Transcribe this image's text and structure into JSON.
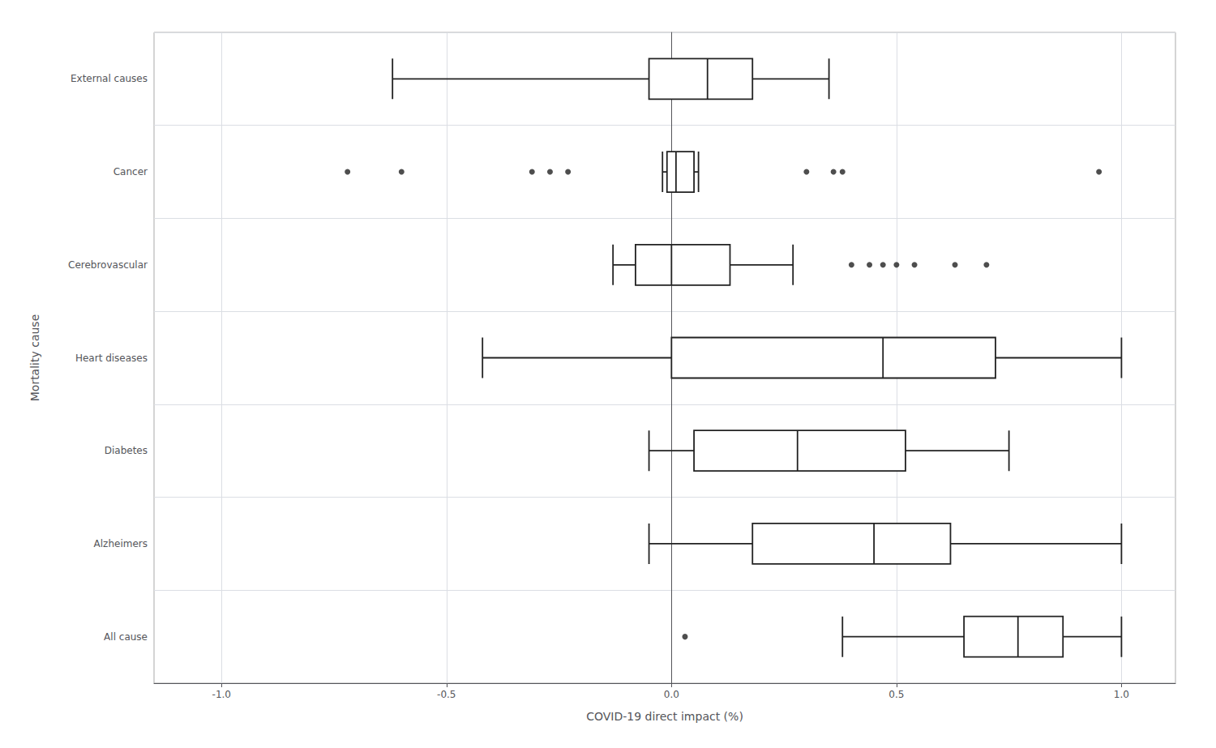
{
  "chart_data": {
    "type": "boxplot",
    "orientation": "horizontal",
    "xlabel": "COVID-19 direct impact (%)",
    "ylabel": "Mortality cause",
    "categories": [
      "External causes",
      "Cancer",
      "Cerebrovascular",
      "Heart diseases",
      "Diabetes",
      "Alzheimers",
      "All cause"
    ],
    "values": [
      [
        -0.62,
        -0.05,
        0.08,
        0.18,
        0.35
      ],
      [
        -0.02,
        -0.01,
        0.01,
        0.05,
        0.06
      ],
      [
        -0.13,
        -0.08,
        0.0,
        0.13,
        0.27
      ],
      [
        -0.42,
        0.0,
        0.47,
        0.72,
        1.0
      ],
      [
        -0.05,
        0.05,
        0.28,
        0.52,
        0.75
      ],
      [
        -0.05,
        0.18,
        0.45,
        0.62,
        1.0
      ],
      [
        0.38,
        0.65,
        0.77,
        0.87,
        1.0
      ]
    ],
    "outliers": [
      [],
      [
        -0.72,
        -0.6,
        -0.31,
        -0.27,
        -0.23,
        0.3,
        0.36,
        0.38,
        0.95
      ],
      [
        0.4,
        0.44,
        0.47,
        0.5,
        0.54,
        0.63,
        0.7
      ],
      [],
      [],
      [],
      [
        0.03
      ]
    ],
    "xlim": [
      -1.15,
      1.12
    ],
    "xticks": [
      {
        "value": -1.0,
        "label": "-1.0"
      },
      -0.5,
      {
        "value": 0.0,
        "label": "0.0"
      },
      0.5,
      {
        "value": 1.0,
        "label": "1.0"
      }
    ],
    "color": "#222222",
    "marker": "circle",
    "grid": true
  }
}
